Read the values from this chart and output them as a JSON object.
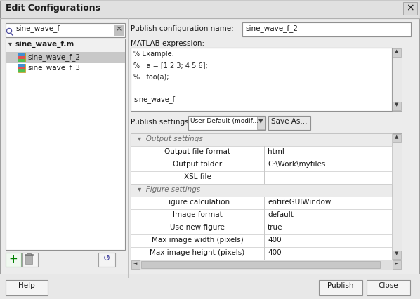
{
  "title": "Edit Configurations",
  "bg_color": "#e8e8e8",
  "dialog_bg": "#ececec",
  "white": "#ffffff",
  "border_color": "#b0b0b0",
  "dark_border": "#909090",
  "selected_bg": "#c8c8c8",
  "header_bg": "#e0e0e0",
  "table_line_color": "#d0d0d0",
  "search_text": "sine_wave_f",
  "tree_parent": "sine_wave_f.m",
  "tree_child1": "sine_wave_f_2",
  "tree_child2": "sine_wave_f_3",
  "pub_name_label": "Publish configuration name:",
  "pub_name_value": "sine_wave_f_2",
  "matlab_label": "MATLAB expression:",
  "matlab_code_lines": [
    "% Example:",
    "%   a = [1 2 3; 4 5 6];",
    "%   foo(a);",
    "",
    "sine_wave_f"
  ],
  "publish_settings_label": "Publish settings:",
  "publish_settings_dropdown": "User Default (modif...",
  "save_as_btn": "Save As...",
  "output_settings_header": "Output settings",
  "figure_settings_header": "Figure settings",
  "output_rows": [
    [
      "Output file format",
      "html"
    ],
    [
      "Output folder",
      "C:\\Work\\myfiles"
    ],
    [
      "XSL file",
      ""
    ]
  ],
  "figure_rows": [
    [
      "Figure calculation",
      "entireGUIWindow"
    ],
    [
      "Image format",
      "default"
    ],
    [
      "Use new figure",
      "true"
    ],
    [
      "Max image width (pixels)",
      "400"
    ],
    [
      "Max image height (pixels)",
      "400"
    ]
  ],
  "help_btn": "Help",
  "publish_btn": "Publish",
  "close_btn": "Close",
  "font_size": 7.5,
  "small_font": 6.5
}
